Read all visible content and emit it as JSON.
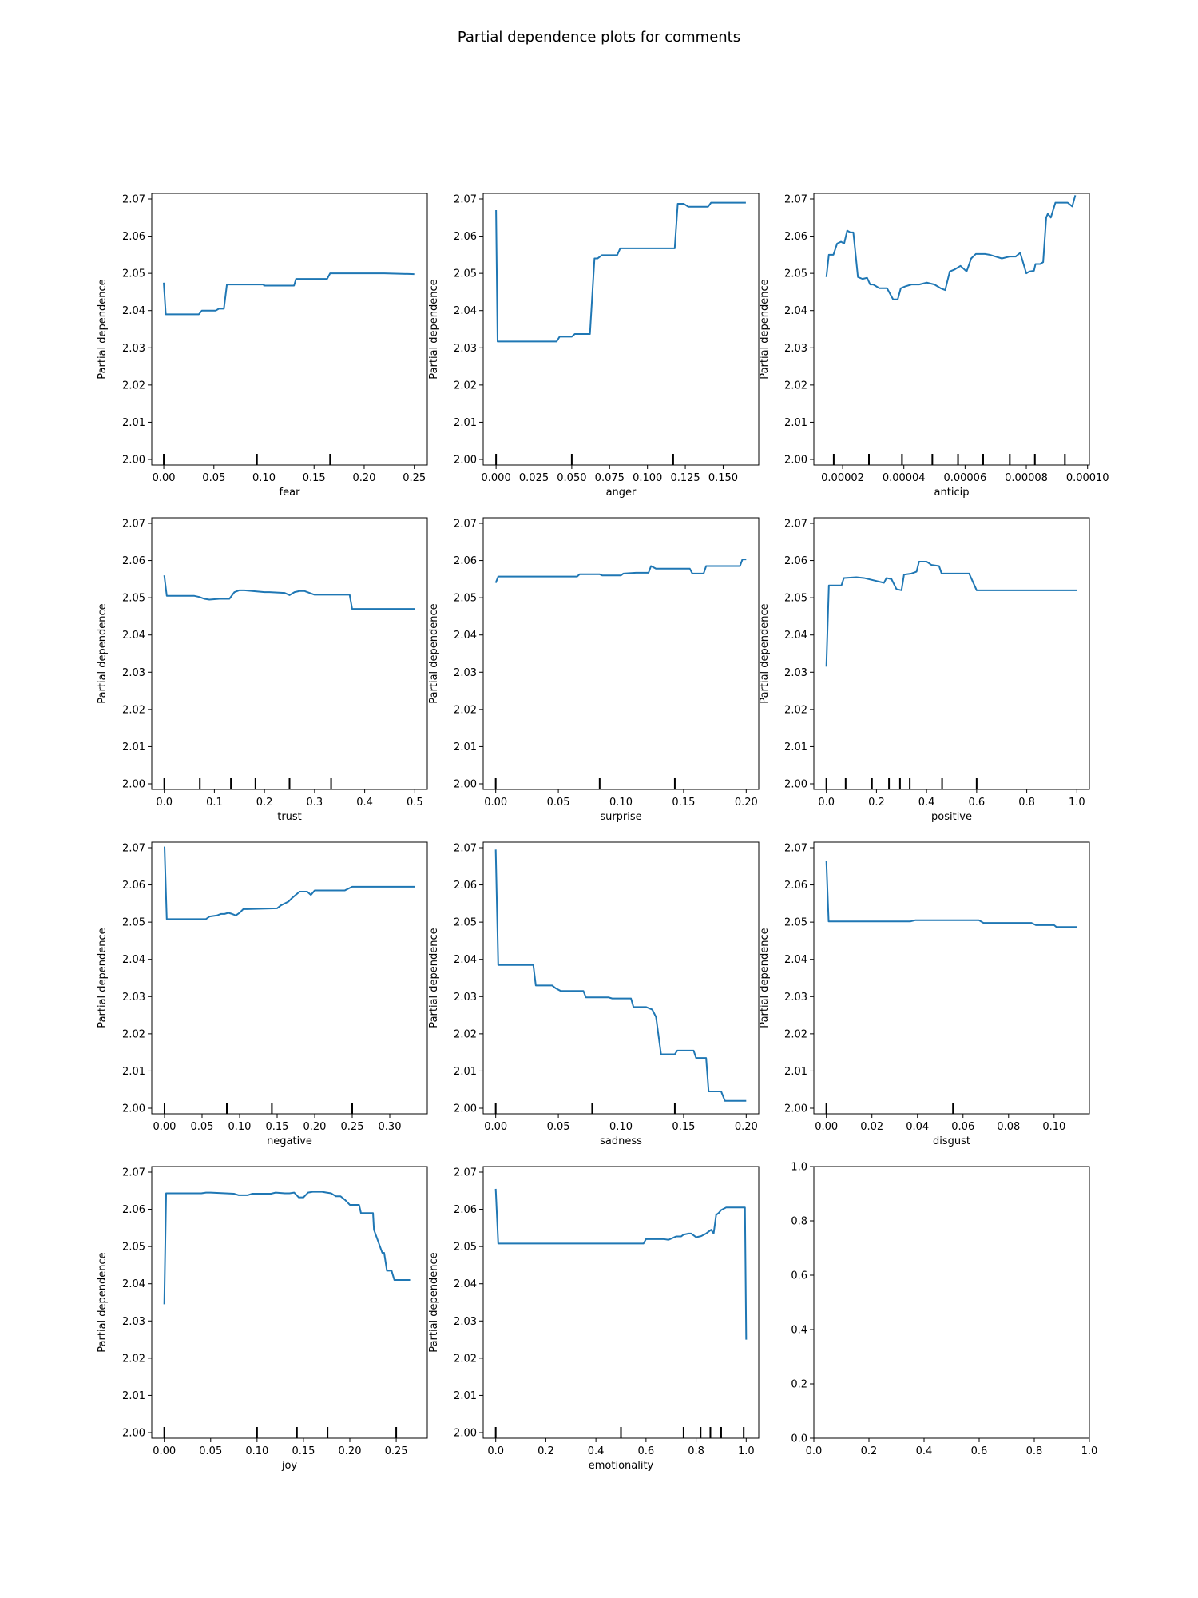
{
  "title": "Partial dependence plots for comments",
  "line_color": "#1f77b4",
  "chart_data": [
    {
      "type": "line",
      "xlabel": "fear",
      "ylabel": "Partial dependence",
      "xlim": [
        -0.012,
        0.263
      ],
      "ylim": [
        1.9985,
        2.0715
      ],
      "xticks": [
        0.0,
        0.05,
        0.1,
        0.15,
        0.2,
        0.25
      ],
      "xticklabels": [
        "0.00",
        "0.05",
        "0.10",
        "0.15",
        "0.20",
        "0.25"
      ],
      "yticks": [
        2.0,
        2.01,
        2.02,
        2.03,
        2.04,
        2.05,
        2.06,
        2.07
      ],
      "yticklabels": [
        "2.00",
        "2.01",
        "2.02",
        "2.03",
        "2.04",
        "2.05",
        "2.06",
        "2.07"
      ],
      "deciles": [
        0.0,
        0.093,
        0.166
      ],
      "x": [
        0,
        0.002,
        0.035,
        0.038,
        0.052,
        0.055,
        0.06,
        0.063,
        0.1,
        0.1,
        0.13,
        0.132,
        0.163,
        0.166,
        0.22,
        0.25
      ],
      "y": [
        2.0475,
        2.039,
        2.039,
        2.04,
        2.04,
        2.0405,
        2.0405,
        2.047,
        2.047,
        2.0467,
        2.0467,
        2.0485,
        2.0485,
        2.05,
        2.05,
        2.0498
      ]
    },
    {
      "type": "line",
      "xlabel": "anger",
      "ylabel": "Partial dependence",
      "xlim": [
        -0.0085,
        0.1735
      ],
      "ylim": [
        1.9985,
        2.0715
      ],
      "xticks": [
        0,
        0.025,
        0.05,
        0.075,
        0.1,
        0.125,
        0.15
      ],
      "xticklabels": [
        "0.000",
        "0.025",
        "0.050",
        "0.075",
        "0.100",
        "0.125",
        "0.150"
      ],
      "yticks": [
        2.0,
        2.01,
        2.02,
        2.03,
        2.04,
        2.05,
        2.06,
        2.07
      ],
      "yticklabels": [
        "2.00",
        "2.01",
        "2.02",
        "2.03",
        "2.04",
        "2.05",
        "2.06",
        "2.07"
      ],
      "deciles": [
        0.0,
        0.05,
        0.117
      ],
      "x": [
        0,
        0.001,
        0.04,
        0.042,
        0.05,
        0.052,
        0.058,
        0.062,
        0.065,
        0.067,
        0.07,
        0.072,
        0.08,
        0.082,
        0.118,
        0.12,
        0.124,
        0.127,
        0.14,
        0.142,
        0.165
      ],
      "y": [
        2.067,
        2.0317,
        2.0317,
        2.033,
        2.033,
        2.0337,
        2.0337,
        2.0337,
        2.054,
        2.054,
        2.0549,
        2.0549,
        2.0549,
        2.0567,
        2.0567,
        2.0687,
        2.0687,
        2.0679,
        2.0679,
        2.069,
        2.069
      ]
    },
    {
      "type": "line",
      "xlabel": "anticip",
      "ylabel": "Partial dependence",
      "xlim": [
        1.06e-05,
        0.0001006
      ],
      "ylim": [
        1.9985,
        2.0715
      ],
      "xticks": [
        2e-05,
        4e-05,
        6e-05,
        8e-05,
        0.0001
      ],
      "xticklabels": [
        "0.00002",
        "0.00004",
        "0.00006",
        "0.00008",
        "0.00010"
      ],
      "yticks": [
        2.0,
        2.01,
        2.02,
        2.03,
        2.04,
        2.05,
        2.06,
        2.07
      ],
      "yticklabels": [
        "2.00",
        "2.01",
        "2.02",
        "2.03",
        "2.04",
        "2.05",
        "2.06",
        "2.07"
      ],
      "deciles": [
        1.71e-05,
        2.86e-05,
        3.94e-05,
        4.93e-05,
        5.77e-05,
        6.59e-05,
        7.46e-05,
        8.28e-05,
        9.26e-05
      ],
      "x": [
        1.47e-05,
        1.55e-05,
        1.7e-05,
        1.82e-05,
        1.95e-05,
        2.05e-05,
        2.15e-05,
        2.25e-05,
        2.35e-05,
        2.5e-05,
        2.65e-05,
        2.8e-05,
        2.9e-05,
        3e-05,
        3.2e-05,
        3.45e-05,
        3.65e-05,
        3.8e-05,
        3.9e-05,
        4.05e-05,
        4.25e-05,
        4.5e-05,
        4.75e-05,
        5e-05,
        5.2e-05,
        5.35e-05,
        5.5e-05,
        5.65e-05,
        5.85e-05,
        6.05e-05,
        6.2e-05,
        6.35e-05,
        6.5e-05,
        6.65e-05,
        6.8e-05,
        7e-05,
        7.2e-05,
        7.45e-05,
        7.65e-05,
        7.8e-05,
        8e-05,
        8.1e-05,
        8.25e-05,
        8.3e-05,
        8.45e-05,
        8.55e-05,
        8.65e-05,
        8.7e-05,
        8.8e-05,
        8.95e-05,
        9.1e-05,
        9.2e-05,
        9.35e-05,
        9.5e-05,
        9.6e-05
      ],
      "y": [
        2.049,
        2.055,
        2.055,
        2.058,
        2.0585,
        2.058,
        2.0615,
        2.061,
        2.061,
        2.049,
        2.0485,
        2.0488,
        2.047,
        2.047,
        2.046,
        2.046,
        2.043,
        2.043,
        2.046,
        2.0465,
        2.047,
        2.047,
        2.0475,
        2.047,
        2.046,
        2.0455,
        2.0505,
        2.051,
        2.052,
        2.0505,
        2.054,
        2.0552,
        2.0552,
        2.0552,
        2.055,
        2.0545,
        2.054,
        2.0545,
        2.0545,
        2.0555,
        2.05,
        2.0505,
        2.0507,
        2.0525,
        2.0525,
        2.053,
        2.065,
        2.066,
        2.065,
        2.069,
        2.069,
        2.069,
        2.069,
        2.068,
        2.071
      ]
    },
    {
      "type": "line",
      "xlabel": "trust",
      "ylabel": "Partial dependence",
      "xlim": [
        -0.025,
        0.525
      ],
      "ylim": [
        1.9985,
        2.0715
      ],
      "xticks": [
        0,
        0.1,
        0.2,
        0.3,
        0.4,
        0.5
      ],
      "xticklabels": [
        "0.0",
        "0.1",
        "0.2",
        "0.3",
        "0.4",
        "0.5"
      ],
      "yticks": [
        2.0,
        2.01,
        2.02,
        2.03,
        2.04,
        2.05,
        2.06,
        2.07
      ],
      "yticklabels": [
        "2.00",
        "2.01",
        "2.02",
        "2.03",
        "2.04",
        "2.05",
        "2.06",
        "2.07"
      ],
      "deciles": [
        0.0,
        0.071,
        0.133,
        0.182,
        0.25,
        0.333
      ],
      "x": [
        0,
        0.005,
        0.06,
        0.07,
        0.08,
        0.09,
        0.11,
        0.13,
        0.14,
        0.15,
        0.16,
        0.2,
        0.21,
        0.24,
        0.25,
        0.26,
        0.27,
        0.28,
        0.3,
        0.31,
        0.37,
        0.375,
        0.5
      ],
      "y": [
        2.056,
        2.0505,
        2.0505,
        2.0502,
        2.0497,
        2.0495,
        2.0497,
        2.0497,
        2.0515,
        2.052,
        2.052,
        2.0515,
        2.0515,
        2.0513,
        2.0507,
        2.0515,
        2.0518,
        2.0518,
        2.0508,
        2.0508,
        2.0508,
        2.047,
        2.047
      ]
    },
    {
      "type": "line",
      "xlabel": "surprise",
      "ylabel": "Partial dependence",
      "xlim": [
        -0.01,
        0.21
      ],
      "ylim": [
        1.9985,
        2.0715
      ],
      "xticks": [
        0,
        0.05,
        0.1,
        0.15,
        0.2
      ],
      "xticklabels": [
        "0.00",
        "0.05",
        "0.10",
        "0.15",
        "0.20"
      ],
      "yticks": [
        2.0,
        2.01,
        2.02,
        2.03,
        2.04,
        2.05,
        2.06,
        2.07
      ],
      "yticklabels": [
        "2.00",
        "2.01",
        "2.02",
        "2.03",
        "2.04",
        "2.05",
        "2.06",
        "2.07"
      ],
      "deciles": [
        0.0,
        0.083,
        0.143
      ],
      "x": [
        0,
        0.002,
        0.065,
        0.067,
        0.083,
        0.085,
        0.1,
        0.102,
        0.112,
        0.122,
        0.124,
        0.128,
        0.13,
        0.155,
        0.157,
        0.166,
        0.168,
        0.195,
        0.197,
        0.2
      ],
      "y": [
        2.054,
        2.0557,
        2.0557,
        2.0563,
        2.0563,
        2.056,
        2.056,
        2.0565,
        2.0567,
        2.0567,
        2.0585,
        2.0578,
        2.0578,
        2.0578,
        2.0565,
        2.0565,
        2.0585,
        2.0585,
        2.0603,
        2.0603
      ]
    },
    {
      "type": "line",
      "xlabel": "positive",
      "ylabel": "Partial dependence",
      "xlim": [
        -0.05,
        1.05
      ],
      "ylim": [
        1.9985,
        2.0715
      ],
      "xticks": [
        0,
        0.2,
        0.4,
        0.6,
        0.8,
        1.0
      ],
      "xticklabels": [
        "0.0",
        "0.2",
        "0.4",
        "0.6",
        "0.8",
        "1.0"
      ],
      "yticks": [
        2.0,
        2.01,
        2.02,
        2.03,
        2.04,
        2.05,
        2.06,
        2.07
      ],
      "yticklabels": [
        "2.00",
        "2.01",
        "2.02",
        "2.03",
        "2.04",
        "2.05",
        "2.06",
        "2.07"
      ],
      "deciles": [
        0.0,
        0.077,
        0.182,
        0.25,
        0.294,
        0.333,
        0.462,
        0.6
      ],
      "x": [
        0,
        0.01,
        0.06,
        0.07,
        0.12,
        0.15,
        0.2,
        0.23,
        0.24,
        0.26,
        0.28,
        0.3,
        0.31,
        0.34,
        0.36,
        0.37,
        0.4,
        0.42,
        0.45,
        0.46,
        0.52,
        0.55,
        0.56,
        0.57,
        0.6,
        1.0
      ],
      "y": [
        2.0315,
        2.0533,
        2.0533,
        2.0553,
        2.0555,
        2.0553,
        2.0545,
        2.054,
        2.0553,
        2.055,
        2.0523,
        2.052,
        2.0562,
        2.0565,
        2.057,
        2.0597,
        2.0597,
        2.0588,
        2.0585,
        2.0565,
        2.0565,
        2.0565,
        2.0565,
        2.0565,
        2.052,
        2.052
      ]
    },
    {
      "type": "line",
      "xlabel": "negative",
      "ylabel": "Partial dependence",
      "xlim": [
        -0.017,
        0.35
      ],
      "ylim": [
        1.9985,
        2.0715
      ],
      "xticks": [
        0,
        0.05,
        0.1,
        0.15,
        0.2,
        0.25,
        0.3
      ],
      "xticklabels": [
        "0.00",
        "0.05",
        "0.10",
        "0.15",
        "0.20",
        "0.25",
        "0.30"
      ],
      "yticks": [
        2.0,
        2.01,
        2.02,
        2.03,
        2.04,
        2.05,
        2.06,
        2.07
      ],
      "yticklabels": [
        "2.00",
        "2.01",
        "2.02",
        "2.03",
        "2.04",
        "2.05",
        "2.06",
        "2.07"
      ],
      "deciles": [
        0.0,
        0.083,
        0.143,
        0.25
      ],
      "x": [
        0,
        0.003,
        0.055,
        0.06,
        0.07,
        0.075,
        0.08,
        0.085,
        0.09,
        0.095,
        0.1,
        0.105,
        0.11,
        0.15,
        0.155,
        0.165,
        0.17,
        0.18,
        0.19,
        0.195,
        0.2,
        0.24,
        0.25,
        0.333
      ],
      "y": [
        2.0703,
        2.0508,
        2.0508,
        2.0515,
        2.0518,
        2.0522,
        2.0522,
        2.0525,
        2.0522,
        2.0518,
        2.0525,
        2.0535,
        2.0535,
        2.0537,
        2.0545,
        2.0555,
        2.0565,
        2.0582,
        2.0582,
        2.0573,
        2.0585,
        2.0585,
        2.0595,
        2.0595
      ]
    },
    {
      "type": "line",
      "xlabel": "sadness",
      "ylabel": "Partial dependence",
      "xlim": [
        -0.01,
        0.21
      ],
      "ylim": [
        1.9985,
        2.0715
      ],
      "xticks": [
        0,
        0.05,
        0.1,
        0.15,
        0.2
      ],
      "xticklabels": [
        "0.00",
        "0.05",
        "0.10",
        "0.15",
        "0.20"
      ],
      "yticks": [
        2.0,
        2.01,
        2.02,
        2.03,
        2.04,
        2.05,
        2.06,
        2.07
      ],
      "yticklabels": [
        "2.00",
        "2.01",
        "2.02",
        "2.03",
        "2.04",
        "2.05",
        "2.06",
        "2.07"
      ],
      "deciles": [
        0.0,
        0.077,
        0.143
      ],
      "x": [
        0,
        0.002,
        0.03,
        0.032,
        0.045,
        0.048,
        0.052,
        0.07,
        0.072,
        0.09,
        0.093,
        0.108,
        0.11,
        0.12,
        0.125,
        0.128,
        0.132,
        0.136,
        0.143,
        0.145,
        0.158,
        0.16,
        0.168,
        0.17,
        0.18,
        0.183,
        0.2
      ],
      "y": [
        2.0695,
        2.0385,
        2.0385,
        2.033,
        2.033,
        2.0322,
        2.0315,
        2.0315,
        2.0298,
        2.0298,
        2.0295,
        2.0295,
        2.0272,
        2.0272,
        2.0265,
        2.0245,
        2.0145,
        2.0145,
        2.0145,
        2.0155,
        2.0155,
        2.0135,
        2.0135,
        2.0045,
        2.0045,
        2.002,
        2.002
      ]
    },
    {
      "type": "line",
      "xlabel": "disgust",
      "ylabel": "Partial dependence",
      "xlim": [
        -0.0055,
        0.1155
      ],
      "ylim": [
        1.9985,
        2.0715
      ],
      "xticks": [
        0,
        0.02,
        0.04,
        0.06,
        0.08,
        0.1
      ],
      "xticklabels": [
        "0.00",
        "0.02",
        "0.04",
        "0.06",
        "0.08",
        "0.10"
      ],
      "yticks": [
        2.0,
        2.01,
        2.02,
        2.03,
        2.04,
        2.05,
        2.06,
        2.07
      ],
      "yticklabels": [
        "2.00",
        "2.01",
        "2.02",
        "2.03",
        "2.04",
        "2.05",
        "2.06",
        "2.07"
      ],
      "deciles": [
        0.0,
        0.0556
      ],
      "x": [
        0,
        0.001,
        0.037,
        0.039,
        0.067,
        0.069,
        0.09,
        0.092,
        0.1,
        0.101,
        0.11
      ],
      "y": [
        2.0665,
        2.0502,
        2.0502,
        2.0505,
        2.0505,
        2.0498,
        2.0498,
        2.0492,
        2.0492,
        2.0487,
        2.0487
      ]
    },
    {
      "type": "line",
      "xlabel": "joy",
      "ylabel": "Partial dependence",
      "xlim": [
        -0.0135,
        0.2835
      ],
      "ylim": [
        1.9985,
        2.0715
      ],
      "xticks": [
        0,
        0.05,
        0.1,
        0.15,
        0.2,
        0.25
      ],
      "xticklabels": [
        "0.00",
        "0.05",
        "0.10",
        "0.15",
        "0.20",
        "0.25"
      ],
      "yticks": [
        2.0,
        2.01,
        2.02,
        2.03,
        2.04,
        2.05,
        2.06,
        2.07
      ],
      "yticklabels": [
        "2.00",
        "2.01",
        "2.02",
        "2.03",
        "2.04",
        "2.05",
        "2.06",
        "2.07"
      ],
      "deciles": [
        0.0,
        0.1,
        0.143,
        0.176,
        0.25
      ],
      "x": [
        0,
        0.002,
        0.04,
        0.045,
        0.05,
        0.075,
        0.08,
        0.09,
        0.095,
        0.1,
        0.115,
        0.12,
        0.13,
        0.135,
        0.14,
        0.145,
        0.15,
        0.155,
        0.16,
        0.17,
        0.175,
        0.18,
        0.185,
        0.19,
        0.195,
        0.2,
        0.21,
        0.212,
        0.225,
        0.226,
        0.235,
        0.237,
        0.24,
        0.245,
        0.248,
        0.265
      ],
      "y": [
        2.0345,
        2.0643,
        2.0643,
        2.0645,
        2.0645,
        2.0642,
        2.0638,
        2.0638,
        2.0642,
        2.0642,
        2.0642,
        2.0645,
        2.0643,
        2.0643,
        2.0645,
        2.0632,
        2.0632,
        2.0645,
        2.0647,
        2.0647,
        2.0645,
        2.0643,
        2.0635,
        2.0635,
        2.0625,
        2.0612,
        2.0612,
        2.059,
        2.059,
        2.0545,
        2.0483,
        2.0483,
        2.0435,
        2.0435,
        2.041,
        2.041
      ]
    },
    {
      "type": "line",
      "xlabel": "emotionality",
      "ylabel": "Partial dependence",
      "xlim": [
        -0.05,
        1.05
      ],
      "ylim": [
        1.9985,
        2.0715
      ],
      "xticks": [
        0,
        0.2,
        0.4,
        0.6,
        0.8,
        1.0
      ],
      "xticklabels": [
        "0.0",
        "0.2",
        "0.4",
        "0.6",
        "0.8",
        "1.0"
      ],
      "yticks": [
        2.0,
        2.01,
        2.02,
        2.03,
        2.04,
        2.05,
        2.06,
        2.07
      ],
      "yticklabels": [
        "2.00",
        "2.01",
        "2.02",
        "2.03",
        "2.04",
        "2.05",
        "2.06",
        "2.07"
      ],
      "deciles": [
        0.0,
        0.5,
        0.75,
        0.818,
        0.857,
        0.9,
        0.99
      ],
      "x": [
        0,
        0.01,
        0.59,
        0.6,
        0.67,
        0.69,
        0.72,
        0.74,
        0.75,
        0.77,
        0.78,
        0.8,
        0.82,
        0.84,
        0.86,
        0.87,
        0.88,
        0.89,
        0.9,
        0.92,
        0.99,
        0.995,
        1.0
      ],
      "y": [
        2.0655,
        2.0508,
        2.0508,
        2.052,
        2.052,
        2.0518,
        2.0527,
        2.0527,
        2.0532,
        2.0535,
        2.0535,
        2.0525,
        2.0528,
        2.0535,
        2.0545,
        2.0535,
        2.0585,
        2.059,
        2.0598,
        2.0605,
        2.0605,
        2.0605,
        2.025
      ]
    },
    {
      "type": "empty",
      "xlim": [
        0,
        1
      ],
      "ylim": [
        0,
        1
      ],
      "xticks": [
        0,
        0.2,
        0.4,
        0.6,
        0.8,
        1.0
      ],
      "xticklabels": [
        "0.0",
        "0.2",
        "0.4",
        "0.6",
        "0.8",
        "1.0"
      ],
      "yticks": [
        0,
        0.2,
        0.4,
        0.6,
        0.8,
        1.0
      ],
      "yticklabels": [
        "0.0",
        "0.2",
        "0.4",
        "0.6",
        "0.8",
        "1.0"
      ]
    }
  ]
}
